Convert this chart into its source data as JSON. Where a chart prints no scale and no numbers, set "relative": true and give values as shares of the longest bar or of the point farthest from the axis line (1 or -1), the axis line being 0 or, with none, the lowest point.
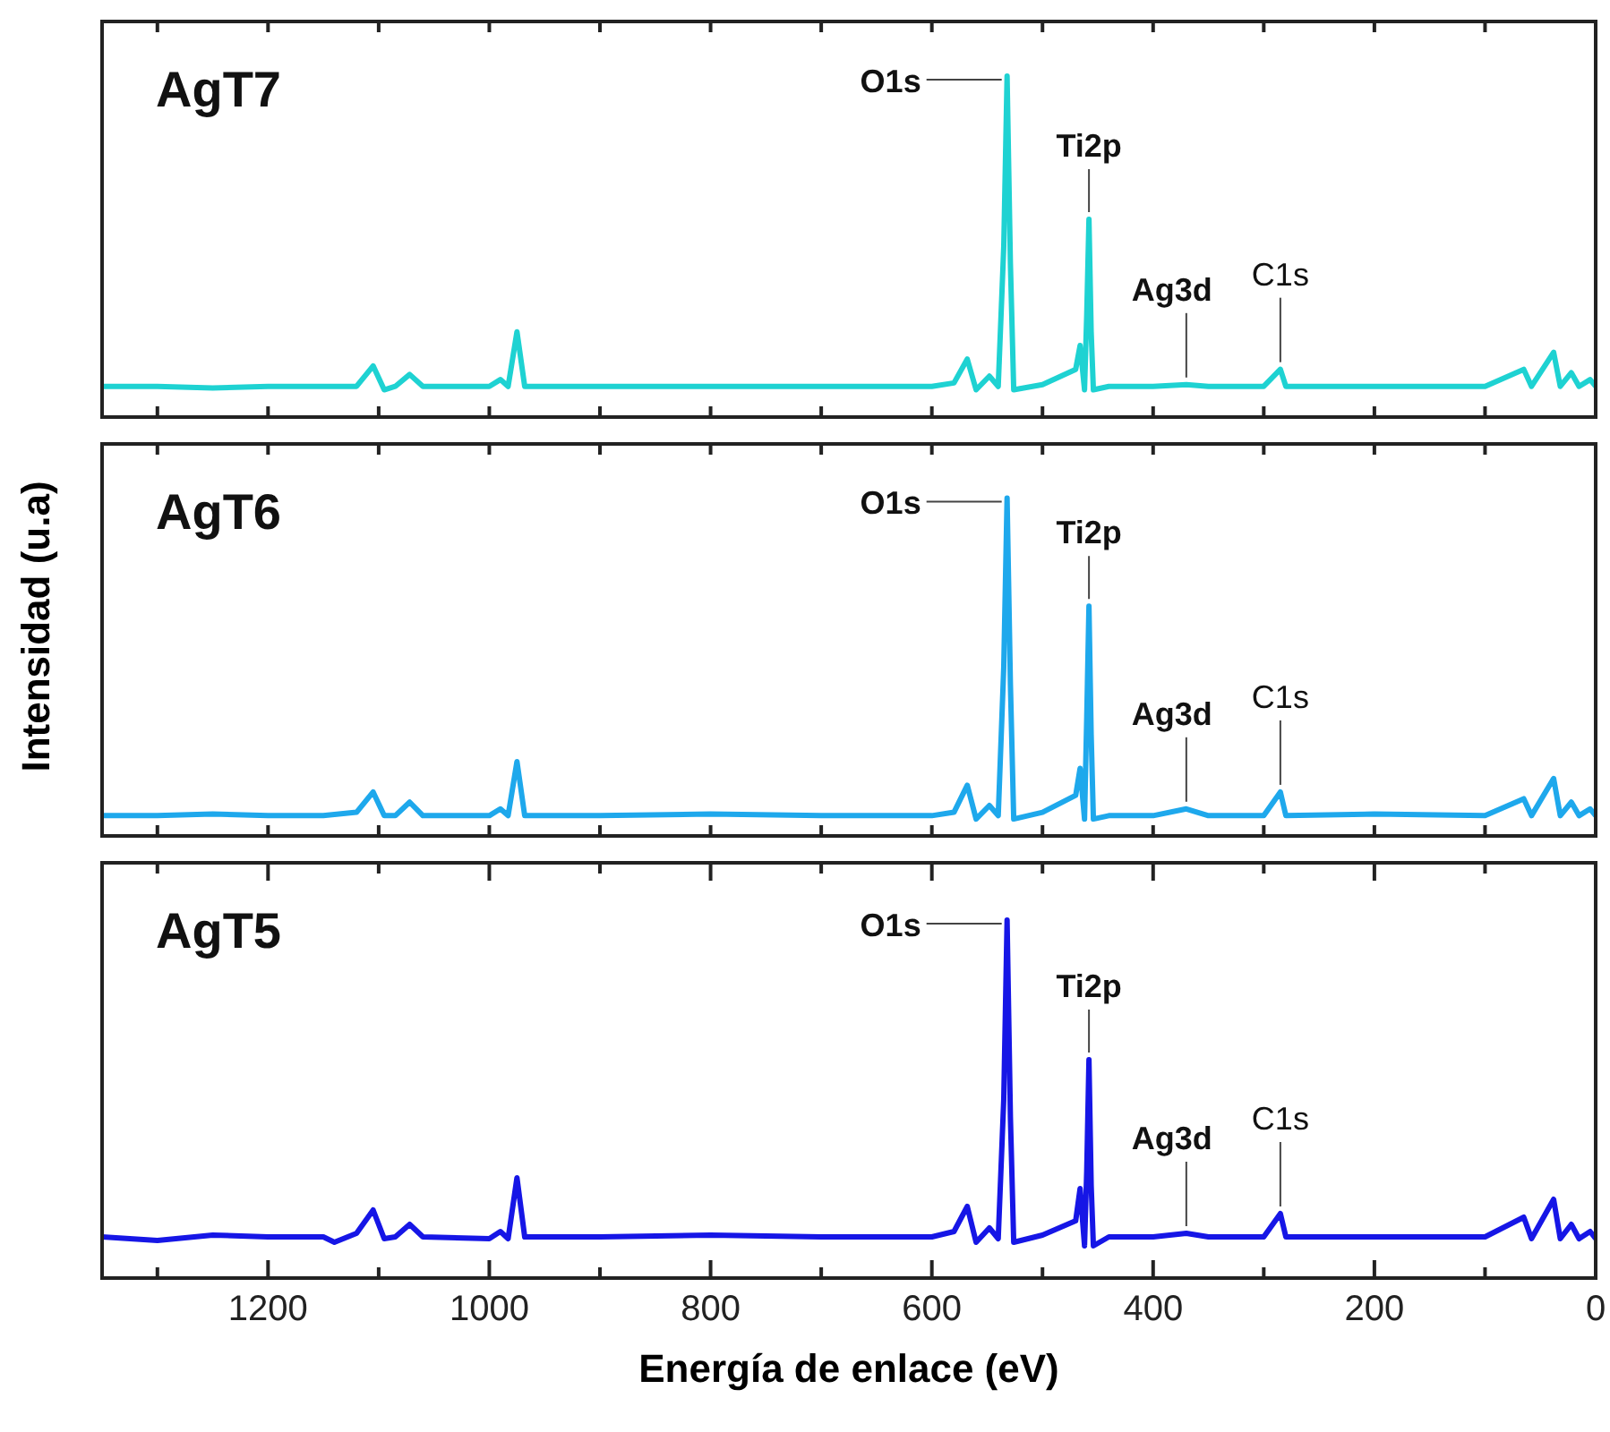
{
  "chart_data": [
    {
      "type": "line",
      "title": "AgT7",
      "relative": true,
      "tick_labels": false,
      "marker": "none",
      "line_style": "solid",
      "legend": false,
      "grid": false,
      "xlim": [
        1350,
        0
      ],
      "xticks": [
        {
          "value": 1300,
          "label": null
        },
        {
          "value": 1200,
          "label": null
        },
        {
          "value": 1100,
          "label": null
        },
        {
          "value": 1000,
          "label": null
        },
        {
          "value": 900,
          "label": null
        },
        {
          "value": 800,
          "label": null
        },
        {
          "value": 700,
          "label": null
        },
        {
          "value": 600,
          "label": null
        },
        {
          "value": 500,
          "label": null
        },
        {
          "value": 400,
          "label": null
        },
        {
          "value": 300,
          "label": null
        },
        {
          "value": 200,
          "label": null
        },
        {
          "value": 100,
          "label": null
        },
        {
          "value": 0,
          "label": null
        }
      ],
      "x": [
        1350,
        1300,
        1250,
        1200,
        1150,
        1120,
        1105,
        1095,
        1085,
        1072,
        1060,
        1000,
        990,
        983,
        975,
        968,
        900,
        800,
        700,
        600,
        580,
        568,
        560,
        548,
        540,
        535,
        532,
        529,
        526,
        500,
        470,
        466,
        462,
        460,
        458,
        456,
        454,
        440,
        400,
        370,
        350,
        300,
        285,
        280,
        200,
        100,
        65,
        58,
        38,
        32,
        22,
        15,
        5,
        0
      ],
      "series": [
        {
          "color": "#1ed2d2",
          "values": [
            0.09,
            0.09,
            0.085,
            0.09,
            0.09,
            0.09,
            0.15,
            0.08,
            0.09,
            0.125,
            0.09,
            0.09,
            0.11,
            0.09,
            0.25,
            0.09,
            0.09,
            0.09,
            0.09,
            0.09,
            0.1,
            0.17,
            0.08,
            0.12,
            0.09,
            0.5,
            1,
            0.45,
            0.08,
            0.095,
            0.14,
            0.21,
            0.08,
            0.3,
            0.58,
            0.25,
            0.08,
            0.09,
            0.09,
            0.095,
            0.09,
            0.09,
            0.14,
            0.09,
            0.09,
            0.09,
            0.14,
            0.09,
            0.19,
            0.09,
            0.13,
            0.09,
            0.11,
            0.09
          ]
        }
      ],
      "annotations": [
        {
          "text": "O1s",
          "x": 532,
          "y": 1
        },
        {
          "text": "Ti2p",
          "x": 458,
          "y": 0.58
        },
        {
          "text": "Ag3d",
          "x": 370,
          "y": 0.095
        },
        {
          "text": "C1s",
          "x": 285,
          "y": 0.14
        }
      ]
    },
    {
      "type": "line",
      "title": "AgT6",
      "relative": true,
      "tick_labels": false,
      "marker": "none",
      "line_style": "solid",
      "legend": false,
      "grid": false,
      "ylabel": "Intensidad (u.a)",
      "xlim": [
        1350,
        0
      ],
      "xticks": [
        {
          "value": 1300,
          "label": null
        },
        {
          "value": 1200,
          "label": null
        },
        {
          "value": 1100,
          "label": null
        },
        {
          "value": 1000,
          "label": null
        },
        {
          "value": 900,
          "label": null
        },
        {
          "value": 800,
          "label": null
        },
        {
          "value": 700,
          "label": null
        },
        {
          "value": 600,
          "label": null
        },
        {
          "value": 500,
          "label": null
        },
        {
          "value": 400,
          "label": null
        },
        {
          "value": 300,
          "label": null
        },
        {
          "value": 200,
          "label": null
        },
        {
          "value": 100,
          "label": null
        },
        {
          "value": 0,
          "label": null
        }
      ],
      "x": [
        1350,
        1300,
        1250,
        1200,
        1150,
        1120,
        1105,
        1095,
        1085,
        1072,
        1060,
        1000,
        990,
        983,
        975,
        968,
        900,
        800,
        700,
        600,
        580,
        568,
        560,
        548,
        540,
        535,
        532,
        529,
        526,
        500,
        470,
        466,
        462,
        460,
        458,
        456,
        454,
        440,
        400,
        370,
        350,
        300,
        285,
        280,
        200,
        100,
        65,
        58,
        38,
        32,
        22,
        15,
        5,
        0
      ],
      "series": [
        {
          "color": "#1ea8ec",
          "values": [
            0.06,
            0.06,
            0.065,
            0.06,
            0.06,
            0.07,
            0.13,
            0.06,
            0.06,
            0.1,
            0.06,
            0.06,
            0.08,
            0.06,
            0.22,
            0.06,
            0.06,
            0.065,
            0.06,
            0.06,
            0.07,
            0.15,
            0.05,
            0.09,
            0.06,
            0.5,
            1,
            0.45,
            0.05,
            0.07,
            0.12,
            0.2,
            0.05,
            0.35,
            0.68,
            0.3,
            0.05,
            0.06,
            0.06,
            0.08,
            0.06,
            0.06,
            0.13,
            0.06,
            0.065,
            0.06,
            0.11,
            0.06,
            0.17,
            0.06,
            0.1,
            0.06,
            0.08,
            0.06
          ]
        }
      ],
      "annotations": [
        {
          "text": "O1s",
          "x": 532,
          "y": 1
        },
        {
          "text": "Ti2p",
          "x": 458,
          "y": 0.68
        },
        {
          "text": "Ag3d",
          "x": 370,
          "y": 0.08
        },
        {
          "text": "C1s",
          "x": 285,
          "y": 0.13
        }
      ]
    },
    {
      "type": "line",
      "title": "AgT5",
      "relative": true,
      "tick_labels": "x",
      "marker": "none",
      "line_style": "solid",
      "legend": false,
      "grid": false,
      "xlabel": "Energía de enlace (eV)",
      "xlim": [
        1350,
        0
      ],
      "xticks": [
        {
          "value": 1300,
          "label": null
        },
        1200,
        {
          "value": 1100,
          "label": null
        },
        1000,
        {
          "value": 900,
          "label": null
        },
        800,
        {
          "value": 700,
          "label": null
        },
        600,
        {
          "value": 500,
          "label": null
        },
        400,
        {
          "value": 300,
          "label": null
        },
        200,
        {
          "value": 100,
          "label": null
        },
        0
      ],
      "x": [
        1350,
        1300,
        1250,
        1200,
        1150,
        1140,
        1120,
        1105,
        1095,
        1085,
        1072,
        1060,
        1000,
        990,
        983,
        975,
        968,
        900,
        800,
        700,
        600,
        580,
        568,
        560,
        548,
        540,
        535,
        532,
        529,
        526,
        500,
        470,
        466,
        462,
        460,
        458,
        456,
        454,
        440,
        400,
        370,
        350,
        300,
        285,
        280,
        200,
        100,
        65,
        58,
        38,
        32,
        22,
        15,
        5,
        0
      ],
      "series": [
        {
          "color": "#1616e6",
          "values": [
            0.115,
            0.105,
            0.12,
            0.115,
            0.115,
            0.1,
            0.125,
            0.19,
            0.11,
            0.115,
            0.15,
            0.115,
            0.11,
            0.13,
            0.11,
            0.28,
            0.115,
            0.115,
            0.12,
            0.115,
            0.115,
            0.13,
            0.2,
            0.1,
            0.14,
            0.11,
            0.5,
            1,
            0.45,
            0.1,
            0.12,
            0.16,
            0.25,
            0.09,
            0.3,
            0.61,
            0.26,
            0.09,
            0.115,
            0.115,
            0.125,
            0.115,
            0.115,
            0.18,
            0.115,
            0.115,
            0.115,
            0.17,
            0.11,
            0.22,
            0.11,
            0.15,
            0.11,
            0.13,
            0.11
          ]
        }
      ],
      "annotations": [
        {
          "text": "O1s",
          "x": 532,
          "y": 1
        },
        {
          "text": "Ti2p",
          "x": 458,
          "y": 0.61
        },
        {
          "text": "Ag3d",
          "x": 370,
          "y": 0.125
        },
        {
          "text": "C1s",
          "x": 285,
          "y": 0.18
        }
      ]
    }
  ]
}
